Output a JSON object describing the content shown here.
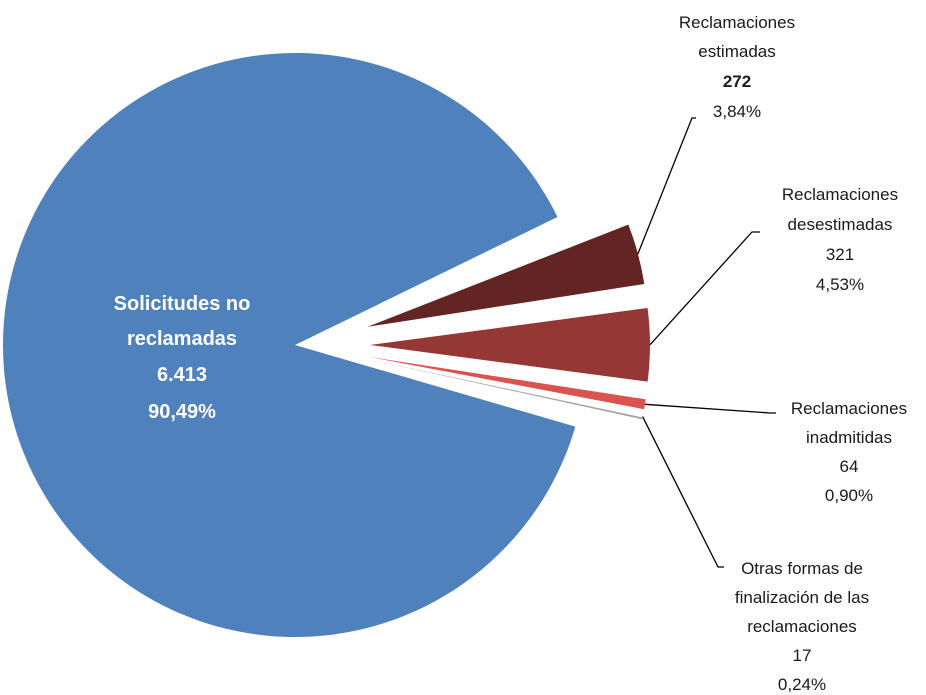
{
  "chart_data": {
    "type": "pie",
    "title": "",
    "slices": [
      {
        "label_lines": [
          "Solicitudes no",
          "reclamadas"
        ],
        "count": "6.413",
        "percent": "90,49%",
        "value": 6413,
        "color": "#4f81bd"
      },
      {
        "label_lines": [
          "Reclamaciones",
          "estimadas"
        ],
        "count": "272",
        "percent": "3,84%",
        "value": 272,
        "color": "#632523"
      },
      {
        "label_lines": [
          "Reclamaciones",
          "desestimadas"
        ],
        "count": "321",
        "percent": "4,53%",
        "value": 321,
        "color": "#953735"
      },
      {
        "label_lines": [
          "Reclamaciones",
          "inadmitidas"
        ],
        "count": "64",
        "percent": "0,90%",
        "value": 64,
        "color": "#d9534f"
      },
      {
        "label_lines": [
          "Otras formas de",
          "finalización de las",
          "reclamaciones"
        ],
        "count": "17",
        "percent": "0,24%",
        "value": 17,
        "color": "#a6a6a6"
      }
    ]
  }
}
